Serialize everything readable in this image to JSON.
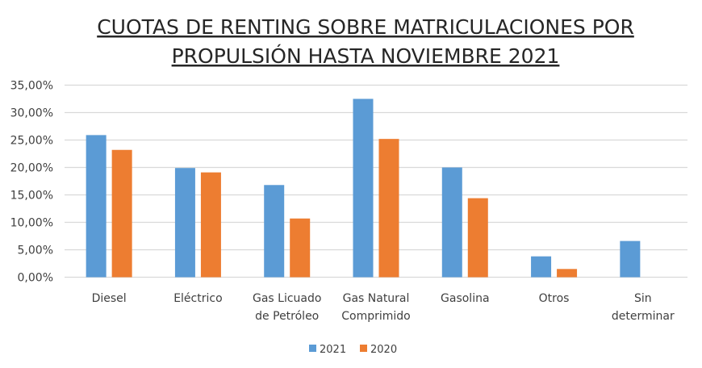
{
  "chart_data": {
    "type": "bar",
    "title_lines": [
      "CUOTAS DE RENTING SOBRE MATRICULACIONES POR",
      "PROPULSIÓN HASTA NOVIEMBRE 2021"
    ],
    "xlabel": "",
    "ylabel": "",
    "categories": [
      [
        "Diesel"
      ],
      [
        "Eléctrico"
      ],
      [
        "Gas Licuado",
        "de Petróleo"
      ],
      [
        "Gas Natural",
        "Comprimido"
      ],
      [
        "Gasolina"
      ],
      [
        "Otros"
      ],
      [
        "Sin",
        "determinar"
      ]
    ],
    "series": [
      {
        "name": "2021",
        "color": "#5B9BD5",
        "values": [
          25.9,
          19.9,
          16.8,
          32.5,
          20.0,
          3.8,
          6.6
        ]
      },
      {
        "name": "2020",
        "color": "#ED7D31",
        "values": [
          23.2,
          19.1,
          10.7,
          25.2,
          14.4,
          1.5,
          null
        ]
      }
    ],
    "ylim": [
      0,
      35
    ],
    "yticks": [
      0,
      5,
      10,
      15,
      20,
      25,
      30,
      35
    ],
    "ytick_labels": [
      "0,00%",
      "5,00%",
      "10,00%",
      "15,00%",
      "20,00%",
      "25,00%",
      "30,00%",
      "35,00%"
    ],
    "grid": true,
    "grid_color": "#D9D9D9",
    "legend_position": "bottom"
  }
}
